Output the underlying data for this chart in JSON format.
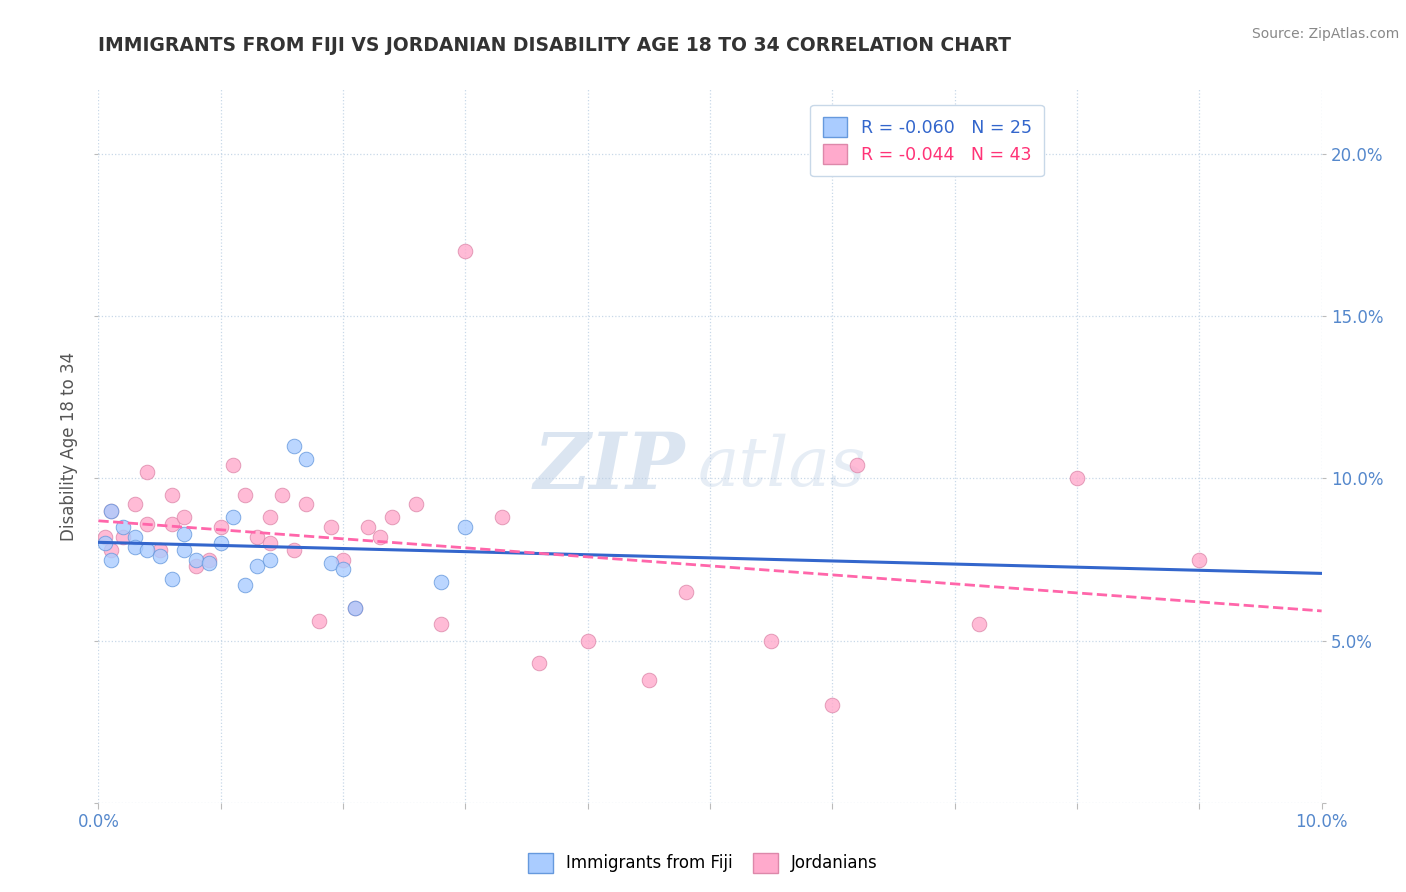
{
  "title": "IMMIGRANTS FROM FIJI VS JORDANIAN DISABILITY AGE 18 TO 34 CORRELATION CHART",
  "source": "Source: ZipAtlas.com",
  "ylabel_label": "Disability Age 18 to 34",
  "xlim": [
    0.0,
    0.1
  ],
  "ylim": [
    0.0,
    0.22
  ],
  "xticks": [
    0.0,
    0.01,
    0.02,
    0.03,
    0.04,
    0.05,
    0.06,
    0.07,
    0.08,
    0.09,
    0.1
  ],
  "yticks": [
    0.0,
    0.05,
    0.1,
    0.15,
    0.2
  ],
  "xtick_labels": [
    "0.0%",
    "",
    "",
    "",
    "",
    "",
    "",
    "",
    "",
    "",
    "10.0%"
  ],
  "ytick_labels_right": [
    "",
    "5.0%",
    "10.0%",
    "15.0%",
    "20.0%"
  ],
  "background_color": "#ffffff",
  "grid_color": "#c8d8e8",
  "fiji_color": "#aaccff",
  "jordan_color": "#ffaacc",
  "fiji_edge_color": "#6699dd",
  "jordan_edge_color": "#dd88aa",
  "fiji_line_color": "#3366cc",
  "jordan_line_color": "#ff66aa",
  "legend_r_fiji": "R = -0.060",
  "legend_n_fiji": "N = 25",
  "legend_r_jordan": "R = -0.044",
  "legend_n_jordan": "N = 43",
  "watermark_zip": "ZIP",
  "watermark_atlas": "atlas",
  "fiji_scatter_x": [
    0.0005,
    0.001,
    0.001,
    0.002,
    0.003,
    0.003,
    0.004,
    0.005,
    0.006,
    0.007,
    0.007,
    0.008,
    0.009,
    0.01,
    0.011,
    0.012,
    0.013,
    0.014,
    0.016,
    0.017,
    0.019,
    0.02,
    0.021,
    0.028,
    0.03
  ],
  "fiji_scatter_y": [
    0.08,
    0.09,
    0.075,
    0.085,
    0.082,
    0.079,
    0.078,
    0.076,
    0.069,
    0.078,
    0.083,
    0.075,
    0.074,
    0.08,
    0.088,
    0.067,
    0.073,
    0.075,
    0.11,
    0.106,
    0.074,
    0.072,
    0.06,
    0.068,
    0.085
  ],
  "jordan_scatter_x": [
    0.0005,
    0.001,
    0.001,
    0.002,
    0.003,
    0.004,
    0.004,
    0.005,
    0.006,
    0.006,
    0.007,
    0.008,
    0.009,
    0.01,
    0.011,
    0.012,
    0.013,
    0.014,
    0.014,
    0.015,
    0.016,
    0.017,
    0.018,
    0.019,
    0.02,
    0.021,
    0.022,
    0.023,
    0.024,
    0.026,
    0.028,
    0.03,
    0.033,
    0.036,
    0.04,
    0.045,
    0.048,
    0.055,
    0.06,
    0.062,
    0.072,
    0.08,
    0.09
  ],
  "jordan_scatter_y": [
    0.082,
    0.078,
    0.09,
    0.082,
    0.092,
    0.086,
    0.102,
    0.078,
    0.086,
    0.095,
    0.088,
    0.073,
    0.075,
    0.085,
    0.104,
    0.095,
    0.082,
    0.088,
    0.08,
    0.095,
    0.078,
    0.092,
    0.056,
    0.085,
    0.075,
    0.06,
    0.085,
    0.082,
    0.088,
    0.092,
    0.055,
    0.17,
    0.088,
    0.043,
    0.05,
    0.038,
    0.065,
    0.05,
    0.03,
    0.104,
    0.055,
    0.1,
    0.075
  ],
  "fiji_trend_x": [
    0.0,
    0.1
  ],
  "fiji_trend_y": [
    0.082,
    0.068
  ],
  "jordan_trend_x": [
    0.0,
    0.1
  ],
  "jordan_trend_y": [
    0.082,
    0.068
  ]
}
